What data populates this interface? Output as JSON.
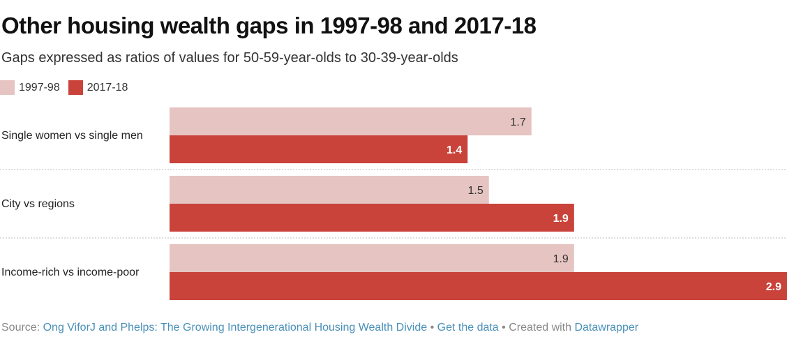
{
  "title": "Other housing wealth gaps in 1997-98 and 2017-18",
  "subtitle": "Gaps expressed as ratios of values for 50-59-year-olds to 30-39-year-olds",
  "colors": {
    "series_1997": "#e6c4c2",
    "series_2017": "#c9433a",
    "label_dark": "#333333",
    "label_light": "#ffffff",
    "separator": "#bbbbbb"
  },
  "legend": [
    {
      "label": "1997-98",
      "color": "#e6c4c2"
    },
    {
      "label": "2017-18",
      "color": "#c9433a"
    }
  ],
  "chart_data": {
    "type": "bar",
    "orientation": "horizontal",
    "categories": [
      "Single women vs single men",
      "City vs regions",
      "Income-rich vs income-poor"
    ],
    "series": [
      {
        "name": "1997-98",
        "values": [
          1.7,
          1.5,
          1.9
        ]
      },
      {
        "name": "2017-18",
        "values": [
          1.4,
          1.9,
          2.9
        ]
      }
    ],
    "value_labels": [
      [
        "1.7",
        "1.5",
        "1.9"
      ],
      [
        "1.4",
        "1.9",
        "2.9"
      ]
    ],
    "xlim": [
      0,
      2.9
    ],
    "grid": false,
    "legend_position": "top-left"
  },
  "footer": {
    "source_prefix": "Source: ",
    "source_link": "Ong ViforJ and Phelps: The Growing Intergenerational Housing Wealth Divide",
    "sep1": " • ",
    "get_data": "Get the data",
    "sep2": " • Created with ",
    "datawrapper": "Datawrapper"
  }
}
